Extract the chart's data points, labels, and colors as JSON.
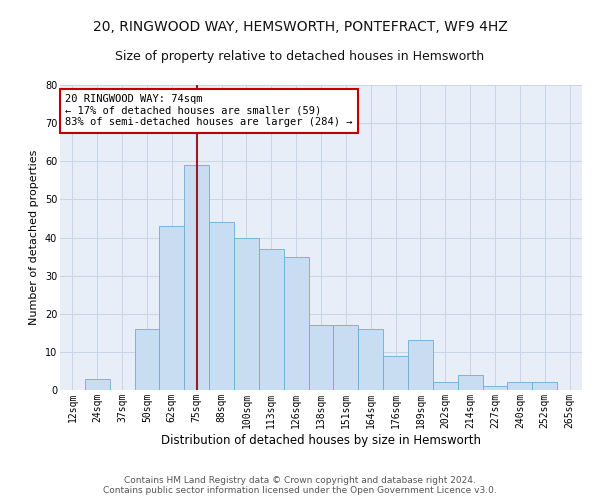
{
  "title1": "20, RINGWOOD WAY, HEMSWORTH, PONTEFRACT, WF9 4HZ",
  "title2": "Size of property relative to detached houses in Hemsworth",
  "xlabel": "Distribution of detached houses by size in Hemsworth",
  "ylabel": "Number of detached properties",
  "categories": [
    "12sqm",
    "24sqm",
    "37sqm",
    "50sqm",
    "62sqm",
    "75sqm",
    "88sqm",
    "100sqm",
    "113sqm",
    "126sqm",
    "138sqm",
    "151sqm",
    "164sqm",
    "176sqm",
    "189sqm",
    "202sqm",
    "214sqm",
    "227sqm",
    "240sqm",
    "252sqm",
    "265sqm"
  ],
  "bar_values": [
    0,
    3,
    0,
    16,
    43,
    59,
    44,
    40,
    37,
    35,
    17,
    17,
    16,
    9,
    13,
    2,
    4,
    1,
    2,
    2,
    0
  ],
  "bar_color": "#c9ddf2",
  "bar_edge_color": "#6aaed6",
  "vline_x_index": 5,
  "vline_color": "#9b1c1c",
  "annotation_text": "20 RINGWOOD WAY: 74sqm\n← 17% of detached houses are smaller (59)\n83% of semi-detached houses are larger (284) →",
  "annotation_box_color": "#ffffff",
  "annotation_box_edge_color": "#c00000",
  "ylim": [
    0,
    80
  ],
  "yticks": [
    0,
    10,
    20,
    30,
    40,
    50,
    60,
    70,
    80
  ],
  "grid_color": "#c8d4e8",
  "background_color": "#e8eef8",
  "footer1": "Contains HM Land Registry data © Crown copyright and database right 2024.",
  "footer2": "Contains public sector information licensed under the Open Government Licence v3.0.",
  "title1_fontsize": 10,
  "title2_fontsize": 9,
  "xlabel_fontsize": 8.5,
  "ylabel_fontsize": 8,
  "tick_fontsize": 7,
  "footer_fontsize": 6.5,
  "annotation_fontsize": 7.5
}
